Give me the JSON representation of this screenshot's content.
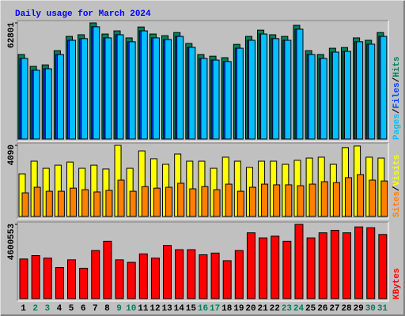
{
  "chart_data": [
    {
      "type": "bar",
      "title": "Daily usage for March 2024",
      "legend_separator": "/",
      "ylim": [
        0,
        62801
      ],
      "yticks": [
        62801
      ],
      "series": [
        {
          "name": "Hits",
          "color": "#00805c",
          "values": [
            45700,
            39300,
            40100,
            47800,
            55500,
            56400,
            62801,
            56800,
            58500,
            54700,
            60600,
            56800,
            55900,
            57600,
            51700,
            45700,
            44800,
            44000,
            51200,
            55500,
            58900,
            56400,
            55500,
            61500,
            47800,
            45700,
            49100,
            49500,
            54700,
            53400,
            57600
          ]
        },
        {
          "name": "Files",
          "color": "#0040ff",
          "values": [
            43600,
            37200,
            38000,
            45700,
            53400,
            54300,
            60700,
            54700,
            56400,
            52600,
            58500,
            54700,
            53800,
            55500,
            49600,
            43600,
            42700,
            41900,
            49100,
            53400,
            56800,
            54300,
            53400,
            59400,
            45700,
            43600,
            47000,
            47400,
            52600,
            51300,
            55500
          ]
        },
        {
          "name": "Pages",
          "color": "#00c0ff",
          "values": [
            43600,
            37200,
            38000,
            45700,
            53400,
            54300,
            60700,
            54700,
            56400,
            52600,
            58500,
            54700,
            53800,
            55500,
            49600,
            43600,
            42700,
            41900,
            49100,
            53400,
            56800,
            54300,
            53400,
            59400,
            45700,
            43600,
            47000,
            47400,
            52600,
            51300,
            55500
          ]
        }
      ]
    },
    {
      "type": "bar",
      "legend_separator": "/",
      "ylim": [
        0,
        4090
      ],
      "yticks": [
        4090
      ],
      "series": [
        {
          "name": "Visits",
          "color": "#ffff00",
          "values": [
            2450,
            3180,
            2770,
            2950,
            3130,
            2770,
            2950,
            2730,
            4090,
            2770,
            3770,
            3320,
            3000,
            3590,
            3180,
            3180,
            2770,
            3410,
            3180,
            2820,
            3180,
            3180,
            3000,
            3230,
            3360,
            3410,
            3000,
            3960,
            4050,
            3410,
            3360
          ]
        },
        {
          "name": "Sites",
          "color": "#ff8000",
          "values": [
            1360,
            1680,
            1450,
            1450,
            1630,
            1540,
            1410,
            1500,
            2090,
            1450,
            1720,
            1630,
            1680,
            1910,
            1590,
            1720,
            1540,
            1860,
            1450,
            1680,
            1860,
            1820,
            1820,
            1770,
            1860,
            2000,
            1950,
            2230,
            2410,
            2090,
            2040
          ]
        }
      ]
    },
    {
      "type": "bar",
      "ylim": [
        0,
        4600553
      ],
      "yticks": [
        4600553
      ],
      "series": [
        {
          "name": "KBytes",
          "color": "#ff0000",
          "values": [
            2457000,
            2666000,
            2509000,
            1934000,
            2405000,
            1882000,
            2980000,
            3555000,
            2405000,
            2248000,
            2771000,
            2509000,
            3293000,
            3032000,
            3032000,
            2718000,
            2823000,
            2352000,
            2980000,
            4078000,
            3764000,
            3869000,
            3555000,
            4600553,
            3764000,
            4078000,
            4234000,
            4078000,
            4444000,
            4391000,
            3973000
          ]
        }
      ],
      "categories": [
        "1",
        "2",
        "3",
        "4",
        "5",
        "6",
        "7",
        "8",
        "9",
        "10",
        "11",
        "12",
        "13",
        "14",
        "15",
        "16",
        "17",
        "18",
        "19",
        "20",
        "21",
        "22",
        "23",
        "24",
        "25",
        "26",
        "27",
        "28",
        "29",
        "30",
        "31"
      ],
      "category_colors": [
        "#000000",
        "#00805c",
        "#00805c",
        "#000000",
        "#000000",
        "#000000",
        "#000000",
        "#000000",
        "#00805c",
        "#00805c",
        "#000000",
        "#000000",
        "#000000",
        "#000000",
        "#000000",
        "#00805c",
        "#00805c",
        "#000000",
        "#000000",
        "#000000",
        "#000000",
        "#000000",
        "#00805c",
        "#00805c",
        "#000000",
        "#000000",
        "#000000",
        "#000000",
        "#000000",
        "#00805c",
        "#00805c"
      ]
    }
  ]
}
